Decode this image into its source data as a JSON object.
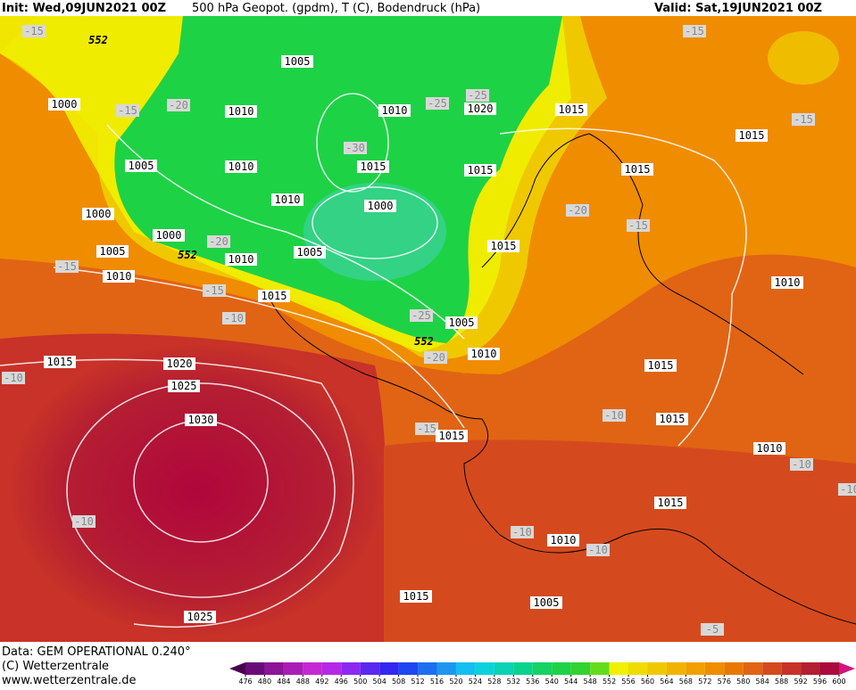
{
  "header": {
    "init": "Init: Wed,09JUN2021 00Z",
    "title": "500 hPa Geopot. (gpdm), T (C), Bodendruck (hPa)",
    "valid": "Valid: Sat,19JUN2021 00Z"
  },
  "footer": {
    "data": "Data: GEM OPERATIONAL 0.240°",
    "copyright": "(C) Wetterzentrale",
    "url": "www.wetterzentrale.de"
  },
  "colorbar": {
    "levels": [
      476,
      480,
      484,
      488,
      492,
      496,
      500,
      504,
      508,
      512,
      516,
      520,
      524,
      528,
      532,
      536,
      540,
      544,
      548,
      552,
      556,
      560,
      564,
      568,
      572,
      576,
      580,
      584,
      588,
      592,
      596,
      600
    ],
    "colors": [
      "#4a0050",
      "#6a0a78",
      "#8c1496",
      "#a81eb4",
      "#c428d2",
      "#b428e6",
      "#8c28f0",
      "#5a28f0",
      "#3228f0",
      "#1e46f0",
      "#1e6ef0",
      "#1e96f0",
      "#14bef0",
      "#0ad2dc",
      "#0ad2b4",
      "#0ad28c",
      "#14d264",
      "#1ed246",
      "#32d232",
      "#64dc1e",
      "#f0f000",
      "#f0dc00",
      "#f0c800",
      "#f0b400",
      "#f0a000",
      "#f08c00",
      "#e87800",
      "#e06414",
      "#d44a1e",
      "#c83228",
      "#b41e32",
      "#aa0a3c",
      "#d2147c"
    ]
  },
  "map_labels": [
    "-15",
    "552",
    "1005",
    "1000",
    "-15",
    "-20",
    "1010",
    "1010",
    "-25",
    "-25",
    "1020",
    "1015",
    "-15",
    "-15",
    "-30",
    "1005",
    "1010",
    "1015",
    "1015",
    "1015",
    "1015",
    "1010",
    "1000",
    "-20",
    "-15",
    "1000",
    "1000",
    "-20",
    "552",
    "1005",
    "1005",
    "1010",
    "1015",
    "-15",
    "1010",
    "-15",
    "1015",
    "-10",
    "1010",
    "-25",
    "1005",
    "552",
    "-20",
    "1010",
    "1015",
    "1020",
    "-10",
    "1015",
    "1025",
    "1030",
    "-10",
    "1015",
    "-15",
    "1015",
    "1010",
    "-10",
    "-10",
    "1015",
    "-10",
    "-10",
    "1010",
    "-10",
    "1015",
    "1005",
    "1025",
    "-5"
  ]
}
